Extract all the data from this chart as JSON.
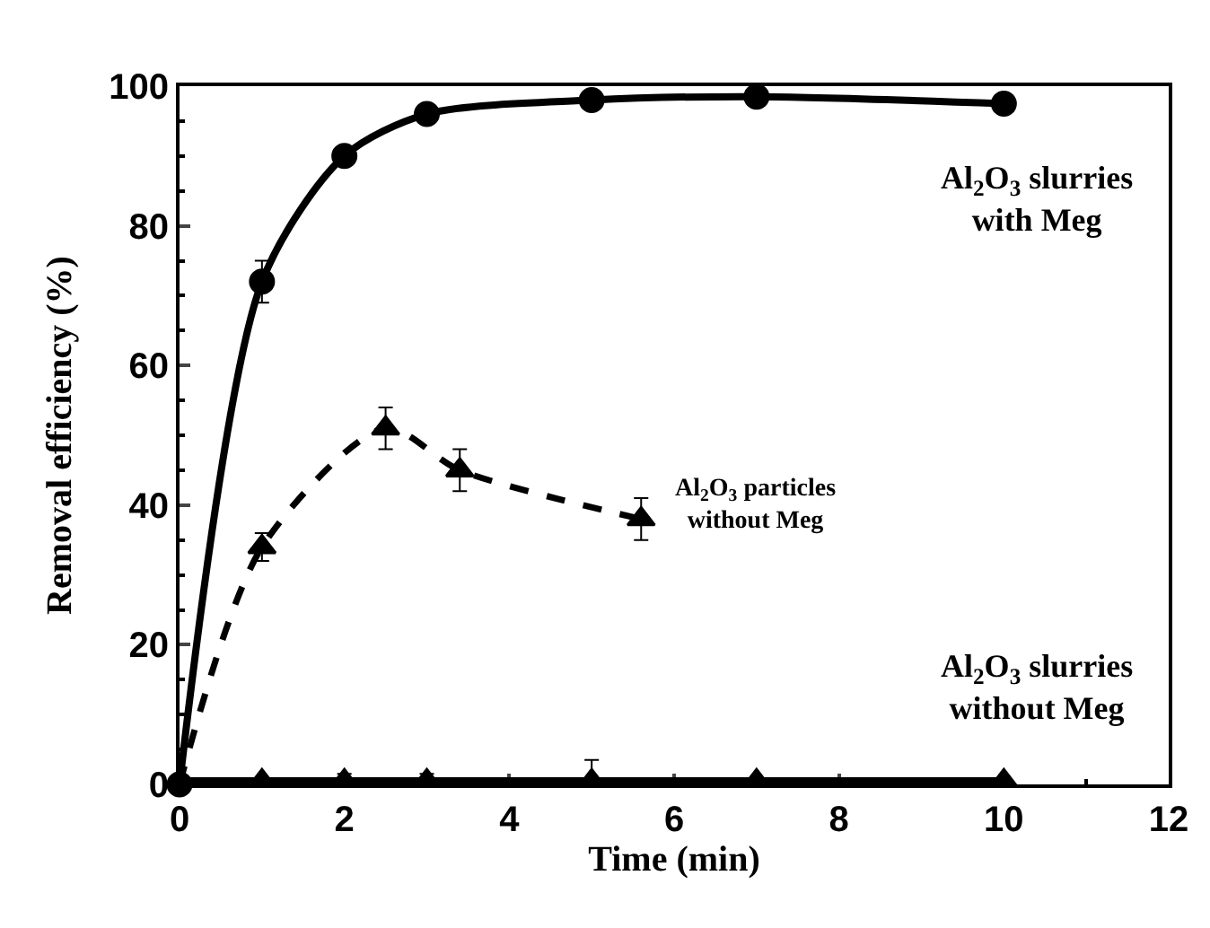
{
  "chart_data": {
    "type": "line",
    "xlabel": "Time (min)",
    "ylabel": "Removal efficiency (%)",
    "xlim": [
      0,
      12
    ],
    "xticks": [
      0,
      2,
      4,
      6,
      8,
      10,
      12
    ],
    "ylim": [
      0,
      100
    ],
    "yticks": [
      0,
      20,
      40,
      60,
      80,
      100
    ],
    "legend": false,
    "series": [
      {
        "name": "Al$_{2}$O$_{3}$ slurries with Meg",
        "color": "#000000",
        "marker": "circle",
        "line_style": "solid",
        "x": [
          0,
          1,
          2,
          3,
          5,
          7,
          10
        ],
        "values": [
          0,
          72,
          90,
          96,
          98,
          98.5,
          97.5
        ],
        "errors": [
          null,
          3,
          null,
          null,
          null,
          null,
          null
        ]
      },
      {
        "name": "Al$_{2}$O$_{3}$ particles without Meg",
        "color": "#000000",
        "marker": "triangle",
        "line_style": "dashed",
        "x": [
          0,
          1,
          2.5,
          3.4,
          5.6
        ],
        "values": [
          0,
          34,
          51,
          45,
          38
        ],
        "errors": [
          null,
          2,
          3,
          3,
          3
        ]
      },
      {
        "name": "Al$_{2}$O$_{3}$ slurries without Meg",
        "color": "#000000",
        "marker": "triangle",
        "line_style": "solid",
        "x": [
          0,
          1,
          2,
          3,
          5,
          7,
          10
        ],
        "values": [
          0.5,
          0.5,
          0.5,
          0.5,
          0.5,
          0.5,
          0.5
        ],
        "errors": [
          null,
          null,
          1,
          1,
          3,
          null,
          null
        ]
      }
    ]
  }
}
